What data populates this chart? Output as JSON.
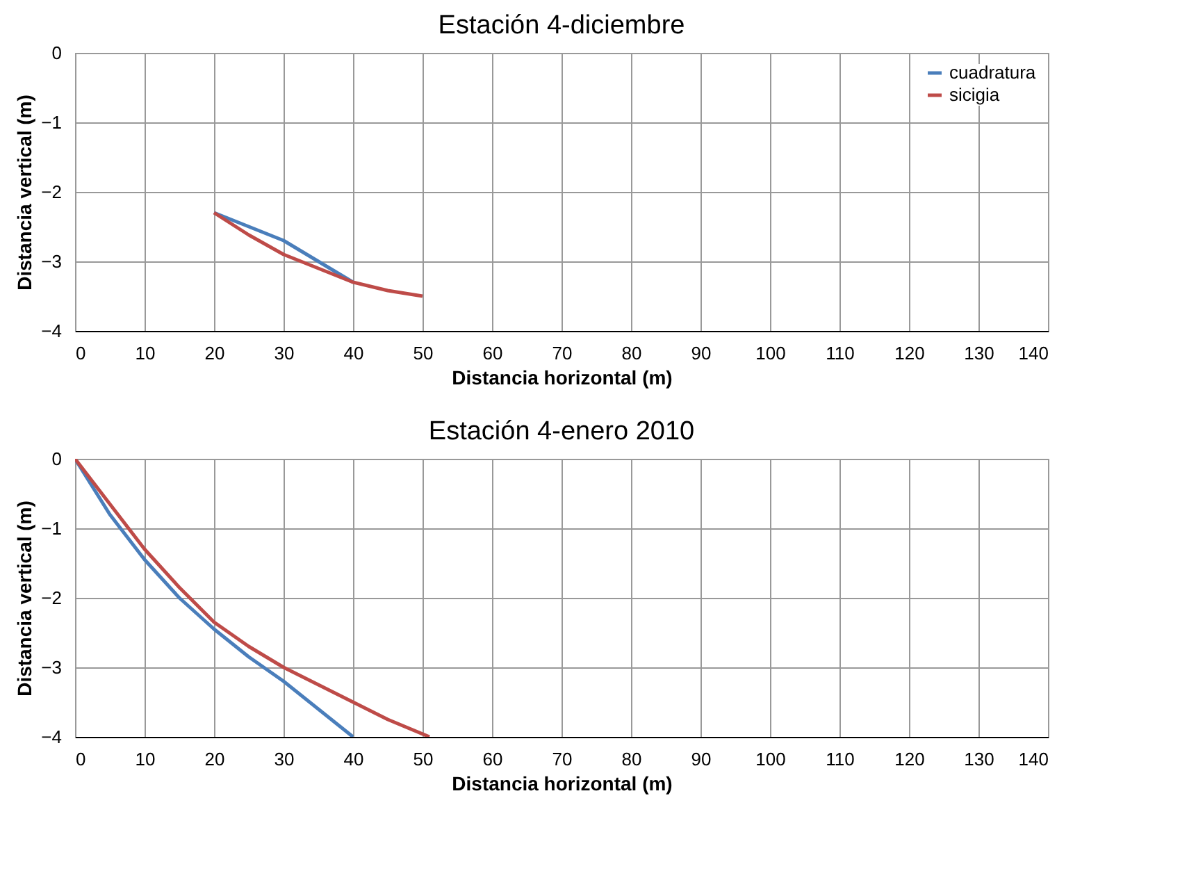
{
  "chart_data": [
    {
      "type": "line",
      "title": "Estación 4-diciembre",
      "xlabel": "Distancia horizontal (m)",
      "ylabel": "Distancia vertical (m)",
      "xlim": [
        0,
        140
      ],
      "xticks": [
        0,
        10,
        20,
        30,
        40,
        50,
        60,
        70,
        80,
        90,
        100,
        110,
        120,
        130,
        140
      ],
      "ylim": [
        -4,
        0
      ],
      "yticks": [
        -4,
        -3,
        -2,
        -1,
        0
      ],
      "grid": true,
      "legend": "top right",
      "marker": "none",
      "line_style": "solid",
      "series": [
        {
          "name": "cuadratura",
          "color": "#4a7ebb",
          "x": [
            20,
            25,
            30,
            35,
            40
          ],
          "values": [
            -2.3,
            -2.5,
            -2.7,
            -3.0,
            -3.3
          ]
        },
        {
          "name": "sicigia",
          "color": "#be4b48",
          "x": [
            20,
            25,
            30,
            35,
            40,
            45,
            50
          ],
          "values": [
            -2.3,
            -2.62,
            -2.9,
            -3.1,
            -3.3,
            -3.42,
            -3.5
          ]
        }
      ]
    },
    {
      "type": "line",
      "title": "Estación 4-enero 2010",
      "xlabel": "Distancia horizontal (m)",
      "ylabel": "Distancia vertical (m)",
      "xlim": [
        0,
        140
      ],
      "xticks": [
        0,
        10,
        20,
        30,
        40,
        50,
        60,
        70,
        80,
        90,
        100,
        110,
        120,
        130,
        140
      ],
      "ylim": [
        -4,
        0
      ],
      "yticks": [
        -4,
        -3,
        -2,
        -1,
        0
      ],
      "grid": true,
      "legend": "top right",
      "marker": "none",
      "line_style": "solid",
      "series": [
        {
          "name": "cuadratura",
          "color": "#4a7ebb",
          "x": [
            0,
            5,
            10,
            15,
            20,
            25,
            30,
            35,
            40
          ],
          "values": [
            0,
            -0.8,
            -1.45,
            -2.0,
            -2.45,
            -2.85,
            -3.2,
            -3.6,
            -4.0
          ]
        },
        {
          "name": "sicigia",
          "color": "#be4b48",
          "x": [
            0,
            5,
            10,
            15,
            20,
            25,
            30,
            35,
            40,
            45,
            51
          ],
          "values": [
            0,
            -0.65,
            -1.3,
            -1.85,
            -2.35,
            -2.7,
            -3.0,
            -3.25,
            -3.5,
            -3.75,
            -4.0
          ]
        }
      ]
    }
  ]
}
